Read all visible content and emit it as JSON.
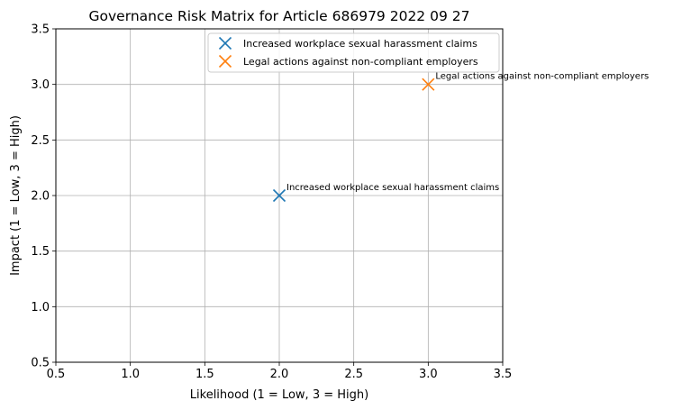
{
  "chart_data": {
    "type": "scatter",
    "title": "Governance Risk Matrix for Article 686979 2022 09 27",
    "xlabel": "Likelihood (1 = Low, 3 = High)",
    "ylabel": "Impact (1 = Low, 3 = High)",
    "xlim": [
      0.5,
      3.5
    ],
    "ylim": [
      0.5,
      3.5
    ],
    "xticks": [
      "0.5",
      "1.0",
      "1.5",
      "2.0",
      "2.5",
      "3.0",
      "3.5"
    ],
    "yticks": [
      "0.5",
      "1.0",
      "1.5",
      "2.0",
      "2.5",
      "3.0",
      "3.5"
    ],
    "grid": true,
    "legend_position": "upper-right",
    "marker": "x",
    "series": [
      {
        "name": "Increased workplace sexual harassment claims",
        "x": 2,
        "y": 2,
        "color": "#1f77b4",
        "annotation": "Increased workplace sexual harassment claims"
      },
      {
        "name": "Legal actions against non-compliant employers",
        "x": 3,
        "y": 3,
        "color": "#ff7f0e",
        "annotation": "Legal actions against non-compliant employers"
      }
    ]
  }
}
